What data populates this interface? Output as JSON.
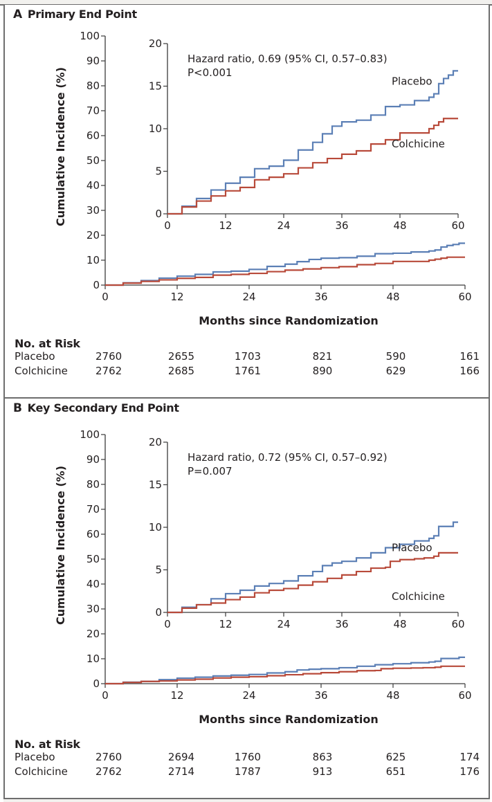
{
  "colors": {
    "placebo": "#5b7fb5",
    "colchicine": "#b84a3a",
    "axis": "#3a3a3a",
    "frame": "#6d6d6d"
  },
  "chart_data": [
    {
      "type": "line",
      "panel_letter": "A",
      "title": "Primary End Point",
      "xlabel": "Months since Randomization",
      "ylabel": "Cumulative Incidence (%)",
      "xlim": [
        0,
        60
      ],
      "ylim": [
        0,
        100
      ],
      "x_ticks": [
        0,
        12,
        24,
        36,
        48,
        60
      ],
      "y_ticks": [
        0,
        10,
        20,
        30,
        40,
        50,
        60,
        70,
        80,
        90,
        100
      ],
      "grid": false,
      "inset": {
        "xlim": [
          0,
          60
        ],
        "ylim": [
          0,
          20
        ],
        "x_ticks": [
          0,
          12,
          24,
          36,
          48,
          60
        ],
        "y_ticks": [
          0,
          5,
          10,
          15,
          20
        ],
        "annotation_line1": "Hazard ratio, 0.69 (95% CI, 0.57–0.83)",
        "annotation_line2": "P<0.001",
        "label_placebo": "Placebo",
        "label_colchicine": "Colchicine"
      },
      "series": [
        {
          "name": "Placebo",
          "color_key": "placebo",
          "x": [
            0,
            3,
            6,
            9,
            12,
            15,
            18,
            21,
            24,
            27,
            30,
            32,
            34,
            36,
            39,
            42,
            45,
            48,
            51,
            54,
            55,
            56,
            57,
            58,
            59,
            60
          ],
          "y": [
            0,
            0.9,
            1.8,
            2.8,
            3.6,
            4.3,
            5.3,
            5.6,
            6.3,
            7.5,
            8.4,
            9.4,
            10.3,
            10.8,
            11.0,
            11.6,
            12.6,
            12.8,
            13.3,
            13.7,
            14.1,
            15.3,
            15.9,
            16.3,
            16.8,
            16.8
          ]
        },
        {
          "name": "Colchicine",
          "color_key": "colchicine",
          "x": [
            0,
            3,
            6,
            9,
            12,
            15,
            18,
            21,
            24,
            27,
            30,
            33,
            36,
            39,
            42,
            45,
            48,
            51,
            53,
            54,
            55,
            56,
            57,
            60
          ],
          "y": [
            0,
            0.8,
            1.5,
            2.1,
            2.7,
            3.1,
            4.0,
            4.3,
            4.7,
            5.4,
            6.0,
            6.5,
            7.0,
            7.4,
            8.2,
            8.7,
            9.5,
            9.5,
            9.5,
            10.0,
            10.4,
            10.8,
            11.2,
            11.2
          ]
        }
      ],
      "at_risk": {
        "title": "No. at Risk",
        "rows": [
          {
            "label": "Placebo",
            "values": [
              "2760",
              "2655",
              "1703",
              "821",
              "590",
              "161"
            ]
          },
          {
            "label": "Colchicine",
            "values": [
              "2762",
              "2685",
              "1761",
              "890",
              "629",
              "166"
            ]
          }
        ]
      }
    },
    {
      "type": "line",
      "panel_letter": "B",
      "title": "Key Secondary End Point",
      "xlabel": "Months since Randomization",
      "ylabel": "Cumulative Incidence (%)",
      "xlim": [
        0,
        60
      ],
      "ylim": [
        0,
        100
      ],
      "x_ticks": [
        0,
        12,
        24,
        36,
        48,
        60
      ],
      "y_ticks": [
        0,
        10,
        20,
        30,
        40,
        50,
        60,
        70,
        80,
        90,
        100
      ],
      "grid": false,
      "inset": {
        "xlim": [
          0,
          60
        ],
        "ylim": [
          0,
          20
        ],
        "x_ticks": [
          0,
          12,
          24,
          36,
          48,
          60
        ],
        "y_ticks": [
          0,
          5,
          10,
          15,
          20
        ],
        "annotation_line1": "Hazard ratio, 0.72 (95% CI, 0.57–0.92)",
        "annotation_line2": "P=0.007",
        "label_placebo": "Placebo",
        "label_colchicine": "Colchicine"
      },
      "series": [
        {
          "name": "Placebo",
          "color_key": "placebo",
          "x": [
            0,
            3,
            6,
            9,
            12,
            15,
            18,
            21,
            24,
            27,
            30,
            32,
            34,
            36,
            39,
            42,
            45,
            48,
            51,
            54,
            55,
            56,
            58,
            59,
            60
          ],
          "y": [
            0,
            0.6,
            0.9,
            1.6,
            2.2,
            2.6,
            3.1,
            3.4,
            3.7,
            4.3,
            4.8,
            5.5,
            5.8,
            6.0,
            6.4,
            7.0,
            7.6,
            8.0,
            8.4,
            8.7,
            9.0,
            10.1,
            10.1,
            10.6,
            10.6
          ]
        },
        {
          "name": "Colchicine",
          "color_key": "colchicine",
          "x": [
            0,
            3,
            6,
            9,
            12,
            15,
            18,
            21,
            24,
            27,
            30,
            33,
            36,
            39,
            42,
            45,
            46,
            48,
            51,
            53,
            55,
            56,
            60
          ],
          "y": [
            0,
            0.5,
            0.9,
            1.1,
            1.5,
            1.8,
            2.3,
            2.6,
            2.8,
            3.2,
            3.6,
            4.0,
            4.4,
            4.8,
            5.2,
            5.3,
            6.0,
            6.2,
            6.3,
            6.4,
            6.6,
            7.0,
            7.0
          ]
        }
      ],
      "at_risk": {
        "title": "No. at Risk",
        "rows": [
          {
            "label": "Placebo",
            "values": [
              "2760",
              "2694",
              "1760",
              "863",
              "625",
              "174"
            ]
          },
          {
            "label": "Colchicine",
            "values": [
              "2762",
              "2714",
              "1787",
              "913",
              "651",
              "176"
            ]
          }
        ]
      }
    }
  ]
}
